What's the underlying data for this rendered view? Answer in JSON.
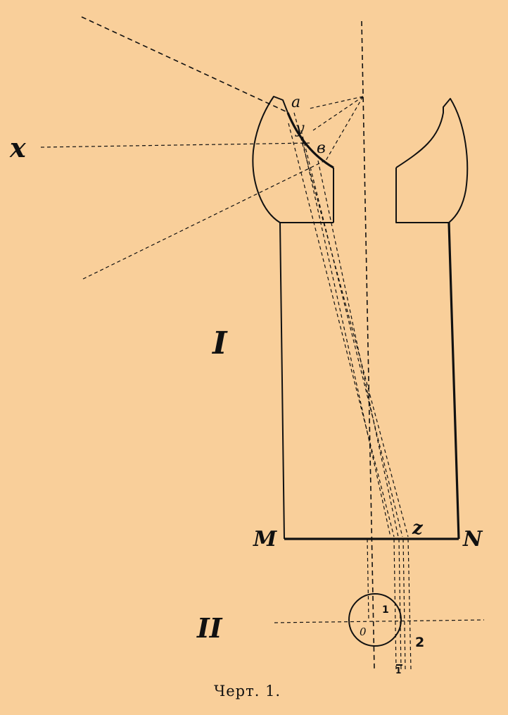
{
  "labels": {
    "a": "a",
    "y": "y",
    "b": "в",
    "x": "x",
    "I": "I",
    "M": "M",
    "N": "N",
    "z": "z",
    "II": "II",
    "one": "1",
    "zero": "0",
    "two": "2",
    "one_bottom": "1"
  },
  "caption": "Черт. 1.",
  "colors": {
    "background": "#f9cf9a",
    "ink": "#111111"
  }
}
